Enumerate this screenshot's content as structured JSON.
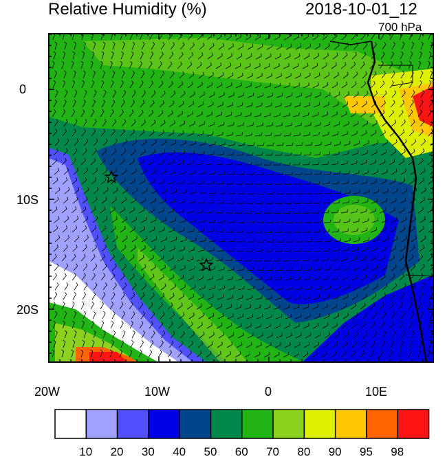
{
  "header": {
    "title": "Relative Humidity (%)",
    "datetime": "2018-10-01_12",
    "level": "700 hPa"
  },
  "map": {
    "lat_labels": [
      "0",
      "10S",
      "20S"
    ],
    "lon_labels": [
      "20W",
      "10W",
      "0",
      "10E"
    ],
    "markers": [
      {
        "name": "star-marker-north",
        "lon": "14.5W",
        "lat": "8S"
      },
      {
        "name": "star-marker-south",
        "lon": "5.7W",
        "lat": "16S"
      }
    ]
  },
  "colorbar": {
    "labels": [
      "10",
      "20",
      "30",
      "40",
      "50",
      "60",
      "70",
      "80",
      "90",
      "95",
      "98"
    ],
    "colors": [
      "#ffffff",
      "#a0a0ff",
      "#5050ff",
      "#0000e6",
      "#00468c",
      "#00884a",
      "#22b414",
      "#8ad21e",
      "#dcf000",
      "#ffc800",
      "#ff6400",
      "#ff1414"
    ]
  },
  "colors": {
    "ocean_dry": "#0000e6",
    "moist": "#22b414",
    "saturated": "#ff1414",
    "frame": "#000000"
  }
}
